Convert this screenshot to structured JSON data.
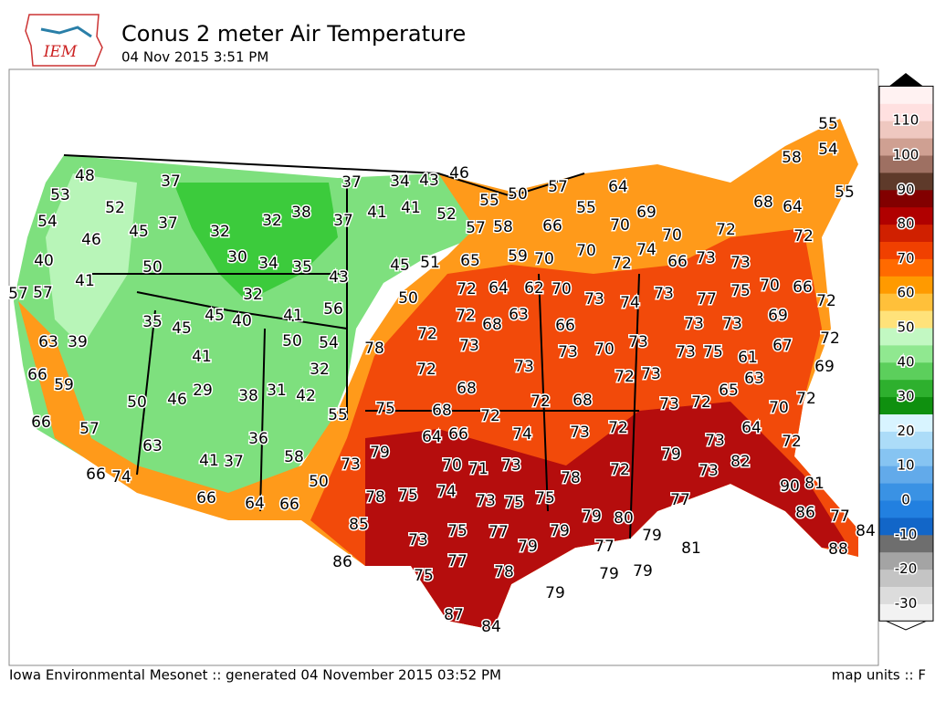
{
  "header": {
    "logo": "IEM",
    "title": "Conus 2 meter Air Temperature",
    "timestamp": "04 Nov 2015 3:51 PM"
  },
  "stations": [
    48,
    53,
    52,
    37,
    54,
    46,
    45,
    37,
    32,
    32,
    38,
    37,
    34,
    43,
    46,
    37,
    41,
    41,
    52,
    55,
    50,
    57,
    64,
    55,
    40,
    50,
    30,
    34,
    35,
    57,
    58,
    66,
    70,
    69,
    70,
    72,
    68,
    64,
    72,
    58,
    55,
    54,
    55,
    41,
    57,
    57,
    43,
    45,
    51,
    65,
    59,
    70,
    70,
    72,
    74,
    66,
    73,
    73,
    32,
    41,
    45,
    40,
    56,
    50,
    72,
    64,
    62,
    70,
    73,
    74,
    73,
    77,
    75,
    70,
    66,
    72,
    35,
    45,
    63,
    39,
    72,
    68,
    63,
    66,
    73,
    73,
    69,
    50,
    54,
    78,
    72,
    73,
    73,
    70,
    73,
    73,
    75,
    61,
    67,
    72,
    41,
    32,
    66,
    59,
    72,
    73,
    72,
    73,
    63,
    69,
    68,
    29,
    38,
    31,
    42,
    46,
    50,
    75,
    68,
    72,
    72,
    68,
    73,
    72,
    65,
    70,
    72,
    55,
    66,
    57,
    64,
    66,
    74,
    73,
    72,
    64,
    36,
    63,
    79,
    79,
    73,
    72,
    41,
    37,
    58,
    73,
    70,
    71,
    73,
    78,
    72,
    82,
    73,
    66,
    74,
    50,
    90,
    81,
    78,
    75,
    74,
    73,
    75,
    75,
    77,
    66,
    64,
    66,
    86,
    77,
    85,
    79,
    80,
    79,
    73,
    75,
    77,
    79,
    79,
    77,
    81,
    84,
    88,
    86,
    77,
    78,
    75,
    79,
    79,
    79,
    87,
    84
  ],
  "legend": {
    "ticks": [
      110,
      100,
      90,
      80,
      70,
      60,
      50,
      40,
      30,
      20,
      10,
      0,
      -10,
      -20,
      -30
    ]
  },
  "footer": {
    "credit": "Iowa Environmental Mesonet :: generated 04 November 2015 03:52 PM",
    "units": "map units :: F"
  }
}
